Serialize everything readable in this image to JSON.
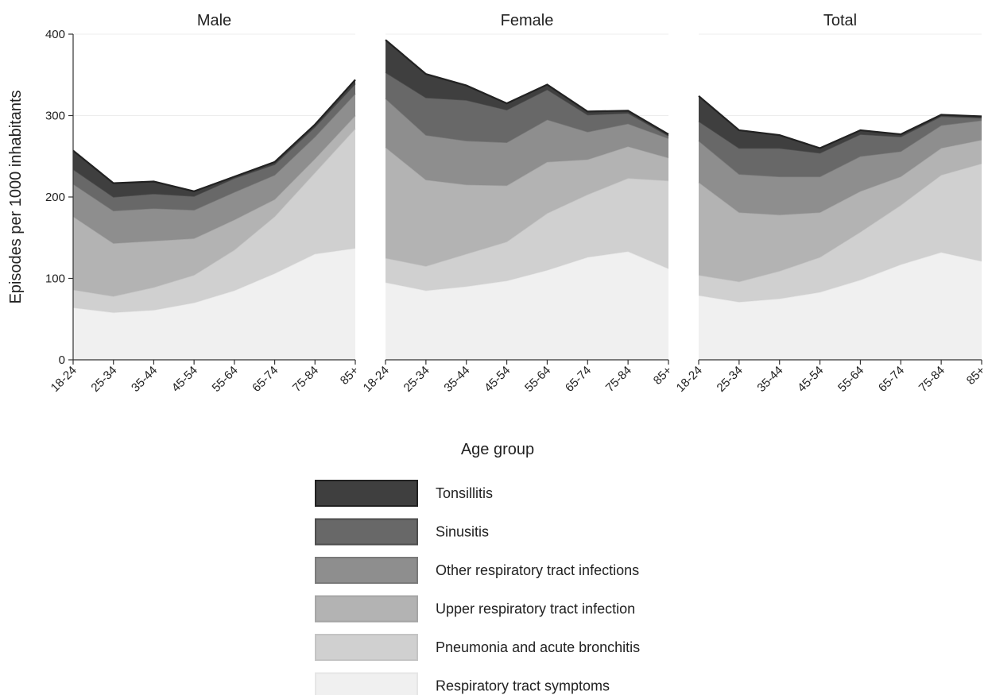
{
  "chart_data": {
    "type": "area",
    "stacked": true,
    "ylabel": "Episodes per 1000 inhabitants",
    "xlabel": "Age group",
    "ylim": [
      0,
      400
    ],
    "yticks": [
      0,
      100,
      200,
      300,
      400
    ],
    "grid": true,
    "legend_position": "bottom",
    "categories": [
      "18-24",
      "25-34",
      "35-44",
      "45-54",
      "55-64",
      "65-74",
      "75-84",
      "85+"
    ],
    "series_styles": [
      {
        "name": "Respiratory tract symptoms",
        "fill": "#f0f0f0",
        "stroke": "#e6e6e6"
      },
      {
        "name": "Pneumonia and acute bronchitis",
        "fill": "#d0d0d0",
        "stroke": "#c4c4c4"
      },
      {
        "name": "Upper respiratory tract infection",
        "fill": "#b3b3b3",
        "stroke": "#a6a6a6"
      },
      {
        "name": "Other respiratory tract infections",
        "fill": "#8e8e8e",
        "stroke": "#7a7a7a"
      },
      {
        "name": "Sinusitis",
        "fill": "#686868",
        "stroke": "#4e4e4e"
      },
      {
        "name": "Tonsillitis",
        "fill": "#3f3f3f",
        "stroke": "#222222"
      }
    ],
    "legend_order": [
      "Tonsillitis",
      "Sinusitis",
      "Other respiratory tract infections",
      "Upper respiratory tract infection",
      "Pneumonia and acute bronchitis",
      "Respiratory tract symptoms"
    ],
    "panels": [
      {
        "title": "Male",
        "series": [
          {
            "name": "Respiratory tract symptoms",
            "values": [
              64,
              58,
              61,
              70,
              85,
              106,
              130,
              137
            ]
          },
          {
            "name": "Pneumonia and acute bronchitis",
            "values": [
              22,
              20,
              28,
              34,
              50,
              70,
              100,
              147
            ]
          },
          {
            "name": "Upper respiratory tract infection",
            "values": [
              90,
              65,
              57,
              45,
              37,
              21,
              17,
              16
            ]
          },
          {
            "name": "Other respiratory tract infections",
            "values": [
              40,
              40,
              40,
              35,
              34,
              30,
              27,
              27
            ]
          },
          {
            "name": "Sinusitis",
            "values": [
              18,
              17,
              18,
              17,
              17,
              13,
              12,
              12
            ]
          },
          {
            "name": "Tonsillitis",
            "values": [
              23,
              17,
              15,
              6,
              2,
              3,
              3,
              5
            ]
          }
        ]
      },
      {
        "title": "Female",
        "series": [
          {
            "name": "Respiratory tract symptoms",
            "values": [
              95,
              85,
              90,
              97,
              110,
              126,
              133,
              112
            ]
          },
          {
            "name": "Pneumonia and acute bronchitis",
            "values": [
              30,
              30,
              40,
              48,
              70,
              77,
              90,
              108
            ]
          },
          {
            "name": "Upper respiratory tract infection",
            "values": [
              136,
              106,
              85,
              69,
              63,
              43,
              39,
              28
            ]
          },
          {
            "name": "Other respiratory tract infections",
            "values": [
              60,
              55,
              54,
              53,
              52,
              34,
              28,
              24
            ]
          },
          {
            "name": "Sinusitis",
            "values": [
              32,
              46,
              50,
              40,
              37,
              21,
              13,
              3
            ]
          },
          {
            "name": "Tonsillitis",
            "values": [
              40,
              29,
              18,
              8,
              6,
              4,
              3,
              2
            ]
          }
        ]
      },
      {
        "title": "Total",
        "series": [
          {
            "name": "Respiratory tract symptoms",
            "values": [
              79,
              71,
              75,
              83,
              98,
              117,
              132,
              121
            ]
          },
          {
            "name": "Pneumonia and acute bronchitis",
            "values": [
              25,
              25,
              34,
              43,
              59,
              73,
              95,
              120
            ]
          },
          {
            "name": "Upper respiratory tract infection",
            "values": [
              114,
              85,
              69,
              55,
              50,
              35,
              33,
              29
            ]
          },
          {
            "name": "Other respiratory tract infections",
            "values": [
              51,
              47,
              47,
              44,
              43,
              31,
              28,
              24
            ]
          },
          {
            "name": "Sinusitis",
            "values": [
              24,
              32,
              35,
              29,
              27,
              18,
              11,
              3
            ]
          },
          {
            "name": "Tonsillitis",
            "values": [
              31,
              22,
              16,
              6,
              5,
              3,
              2,
              2
            ]
          }
        ]
      }
    ]
  }
}
